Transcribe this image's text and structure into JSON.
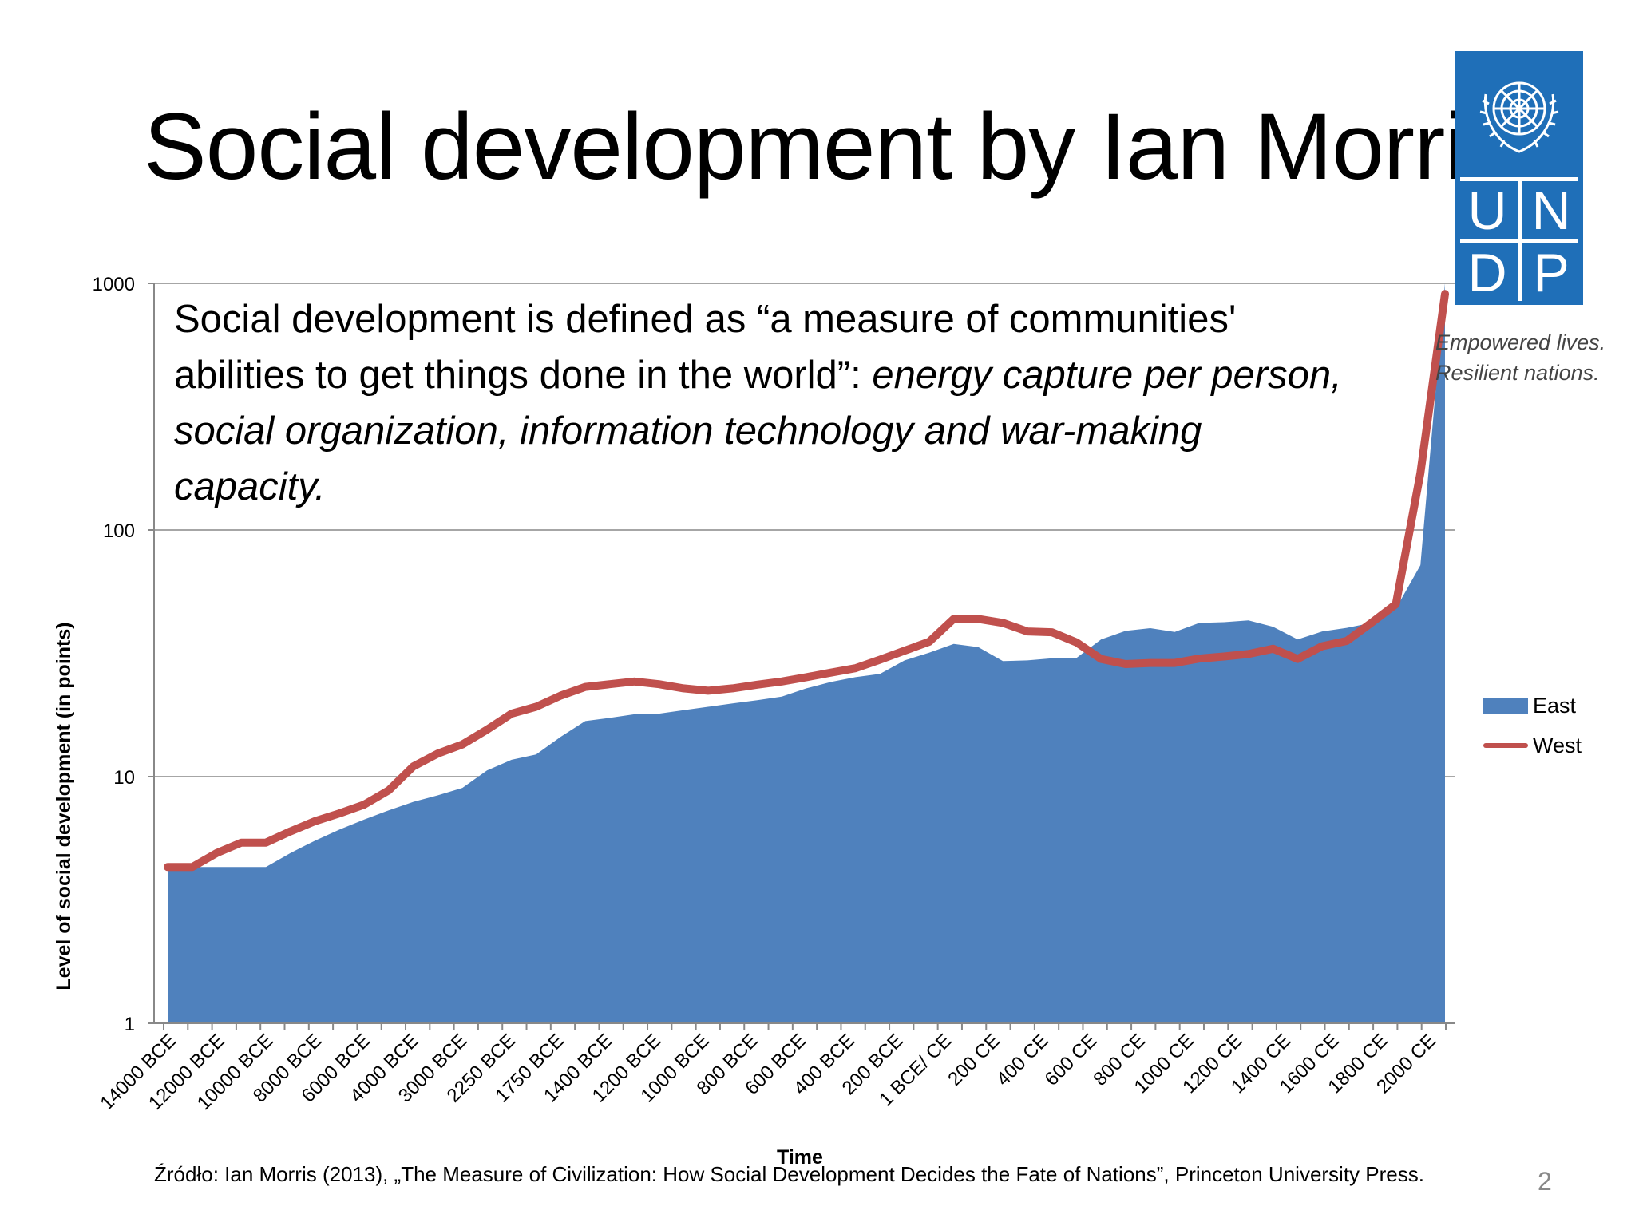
{
  "slide": {
    "title": "Social development by Ian Morris",
    "definition_plain": "Social development is defined as “a measure of communities' abilities to get things done in the world”: ",
    "definition_italic": "energy capture per person, social organization, information technology and war-making capacity.",
    "source": "Źródło: Ian Morris (2013), „The Measure of Civilization: How Social Development Decides the Fate of Nations”, Princeton University Press.",
    "page_number": "2"
  },
  "logo": {
    "letters": [
      "U",
      "N",
      "D",
      "P"
    ],
    "tagline_line1": "Empowered lives.",
    "tagline_line2": "Resilient nations.",
    "color": "#1f6fb8"
  },
  "chart_data": {
    "type": "area",
    "title": "",
    "xlabel": "Time",
    "ylabel": "Level of social development (in points)",
    "yscale": "log",
    "ylim": [
      1,
      1000
    ],
    "yticks": [
      "1",
      "10",
      "100",
      "1000"
    ],
    "grid": true,
    "legend_position": "right",
    "x_tick_labels": [
      "14000 BCE",
      "12000 BCE",
      "10000 BCE",
      "8000 BCE",
      "6000 BCE",
      "4000 BCE",
      "3000 BCE",
      "2250 BCE",
      "1750 BCE",
      "1400 BCE",
      "1200 BCE",
      "1000 BCE",
      "800 BCE",
      "600 BCE",
      "400 BCE",
      "200 BCE",
      "1 BCE/ CE",
      "200 CE",
      "400 CE",
      "600 CE",
      "800 CE",
      "1000 CE",
      "1200 CE",
      "1400 CE",
      "1600 CE",
      "1800 CE",
      "2000 CE"
    ],
    "series": [
      {
        "name": "East",
        "render": "area",
        "color": "#4f81bd",
        "values": [
          4.3,
          4.3,
          4.3,
          4.3,
          4.3,
          4.9,
          5.5,
          6.1,
          6.7,
          7.3,
          7.9,
          8.4,
          9.0,
          10.6,
          11.7,
          12.3,
          14.5,
          16.8,
          17.3,
          17.9,
          18.0,
          18.6,
          19.2,
          19.8,
          20.4,
          21.1,
          22.8,
          24.2,
          25.3,
          26.1,
          29.6,
          31.8,
          34.5,
          33.5,
          29.4,
          29.6,
          30.2,
          30.3,
          36.0,
          39.0,
          40.0,
          38.6,
          42.0,
          42.3,
          43.0,
          40.5,
          36.0,
          38.8,
          40.1,
          42.0,
          48.0,
          72.0,
          1000.0
        ]
      },
      {
        "name": "West",
        "render": "line",
        "color": "#c0504d",
        "values": [
          4.3,
          4.3,
          4.9,
          5.4,
          5.4,
          6.0,
          6.6,
          7.1,
          7.7,
          8.8,
          11.0,
          12.4,
          13.5,
          15.5,
          18.0,
          19.2,
          21.3,
          23.1,
          23.7,
          24.3,
          23.7,
          22.8,
          22.3,
          22.8,
          23.6,
          24.3,
          25.3,
          26.4,
          27.5,
          29.8,
          32.4,
          35.2,
          43.6,
          43.6,
          42.0,
          38.8,
          38.5,
          35.0,
          30.0,
          28.6,
          28.9,
          28.9,
          30.1,
          30.7,
          31.4,
          33.0,
          30.0,
          33.8,
          35.5,
          42.0,
          50.0,
          170.0,
          906.0
        ]
      }
    ]
  }
}
